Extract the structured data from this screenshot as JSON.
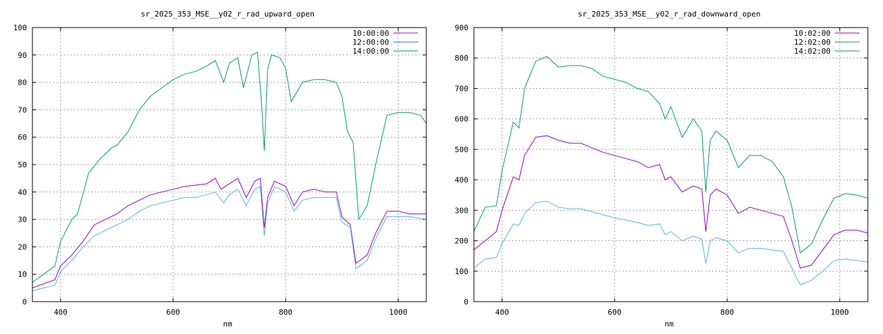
{
  "chart_data": [
    {
      "type": "line",
      "title": "sr_2025_353_MSE__y02_r_rad_upward_open",
      "xlabel": "nm",
      "ylabel": "",
      "xlim": [
        350,
        1050
      ],
      "ylim": [
        0,
        100
      ],
      "x_ticks": [
        400,
        600,
        800,
        1000
      ],
      "y_ticks": [
        0,
        10,
        20,
        30,
        40,
        50,
        60,
        70,
        80,
        90,
        100
      ],
      "grid": true,
      "legend_position": "top-right",
      "series": [
        {
          "name": "10:00:00",
          "color": "#9400d3",
          "points": [
            [
              350,
              5
            ],
            [
              370,
              6.5
            ],
            [
              390,
              8
            ],
            [
              400,
              13
            ],
            [
              420,
              17
            ],
            [
              440,
              22
            ],
            [
              460,
              28
            ],
            [
              480,
              30
            ],
            [
              500,
              32
            ],
            [
              520,
              35
            ],
            [
              540,
              37
            ],
            [
              560,
              39
            ],
            [
              580,
              40
            ],
            [
              600,
              41
            ],
            [
              620,
              42
            ],
            [
              640,
              42.5
            ],
            [
              660,
              43
            ],
            [
              675,
              45
            ],
            [
              685,
              41
            ],
            [
              700,
              43
            ],
            [
              715,
              45
            ],
            [
              730,
              38
            ],
            [
              745,
              44
            ],
            [
              755,
              45
            ],
            [
              762,
              27
            ],
            [
              768,
              38
            ],
            [
              780,
              44
            ],
            [
              800,
              42
            ],
            [
              815,
              35
            ],
            [
              830,
              40
            ],
            [
              850,
              41
            ],
            [
              870,
              40
            ],
            [
              890,
              40
            ],
            [
              900,
              31
            ],
            [
              915,
              28
            ],
            [
              925,
              14
            ],
            [
              945,
              17
            ],
            [
              960,
              25
            ],
            [
              980,
              33
            ],
            [
              1000,
              33
            ],
            [
              1020,
              32
            ],
            [
              1050,
              32
            ]
          ]
        },
        {
          "name": "12:00:00",
          "color": "#009e73",
          "points": [
            [
              350,
              7
            ],
            [
              370,
              10
            ],
            [
              390,
              13
            ],
            [
              400,
              22
            ],
            [
              420,
              30
            ],
            [
              430,
              32
            ],
            [
              450,
              47
            ],
            [
              470,
              52
            ],
            [
              490,
              56
            ],
            [
              500,
              57
            ],
            [
              520,
              62
            ],
            [
              540,
              70
            ],
            [
              560,
              75
            ],
            [
              580,
              78
            ],
            [
              600,
              81
            ],
            [
              620,
              83
            ],
            [
              640,
              84
            ],
            [
              660,
              86
            ],
            [
              675,
              88
            ],
            [
              690,
              80
            ],
            [
              700,
              87
            ],
            [
              715,
              89
            ],
            [
              725,
              78
            ],
            [
              740,
              90
            ],
            [
              750,
              91
            ],
            [
              758,
              70
            ],
            [
              762,
              55
            ],
            [
              768,
              85
            ],
            [
              775,
              90
            ],
            [
              790,
              89
            ],
            [
              800,
              85
            ],
            [
              810,
              73
            ],
            [
              830,
              80
            ],
            [
              850,
              81
            ],
            [
              870,
              81
            ],
            [
              890,
              80
            ],
            [
              900,
              75
            ],
            [
              910,
              62
            ],
            [
              920,
              58
            ],
            [
              930,
              30
            ],
            [
              945,
              35
            ],
            [
              960,
              50
            ],
            [
              980,
              68
            ],
            [
              1000,
              69
            ],
            [
              1020,
              69
            ],
            [
              1040,
              68
            ],
            [
              1050,
              65
            ]
          ]
        },
        {
          "name": "14:00:00",
          "color": "#56b4e9",
          "points": [
            [
              350,
              4
            ],
            [
              370,
              5
            ],
            [
              390,
              6
            ],
            [
              400,
              11
            ],
            [
              420,
              15
            ],
            [
              440,
              20
            ],
            [
              460,
              24
            ],
            [
              480,
              26
            ],
            [
              500,
              28
            ],
            [
              520,
              30
            ],
            [
              540,
              33
            ],
            [
              560,
              35
            ],
            [
              580,
              36
            ],
            [
              600,
              37
            ],
            [
              620,
              38
            ],
            [
              640,
              38
            ],
            [
              660,
              39
            ],
            [
              675,
              40
            ],
            [
              690,
              36
            ],
            [
              700,
              39
            ],
            [
              715,
              41
            ],
            [
              730,
              35
            ],
            [
              745,
              41
            ],
            [
              755,
              42
            ],
            [
              762,
              24
            ],
            [
              768,
              36
            ],
            [
              780,
              42
            ],
            [
              800,
              40
            ],
            [
              815,
              33
            ],
            [
              830,
              37
            ],
            [
              850,
              38
            ],
            [
              870,
              38
            ],
            [
              890,
              38
            ],
            [
              900,
              29
            ],
            [
              915,
              27
            ],
            [
              925,
              12
            ],
            [
              945,
              15
            ],
            [
              960,
              23
            ],
            [
              980,
              31
            ],
            [
              1000,
              31
            ],
            [
              1020,
              31
            ],
            [
              1050,
              30
            ]
          ]
        }
      ]
    },
    {
      "type": "line",
      "title": "sr_2025_353_MSE__y02_r_rad_downward_open",
      "xlabel": "nm",
      "ylabel": "",
      "xlim": [
        350,
        1050
      ],
      "ylim": [
        0,
        900
      ],
      "x_ticks": [
        400,
        600,
        800,
        1000
      ],
      "y_ticks": [
        0,
        100,
        200,
        300,
        400,
        500,
        600,
        700,
        800,
        900
      ],
      "grid": true,
      "legend_position": "top-right",
      "series": [
        {
          "name": "10:02:00",
          "color": "#9400d3",
          "points": [
            [
              350,
              170
            ],
            [
              370,
              200
            ],
            [
              390,
              230
            ],
            [
              400,
              300
            ],
            [
              420,
              410
            ],
            [
              430,
              400
            ],
            [
              440,
              480
            ],
            [
              460,
              540
            ],
            [
              480,
              545
            ],
            [
              500,
              530
            ],
            [
              520,
              520
            ],
            [
              540,
              520
            ],
            [
              560,
              505
            ],
            [
              580,
              490
            ],
            [
              600,
              480
            ],
            [
              620,
              470
            ],
            [
              640,
              460
            ],
            [
              660,
              440
            ],
            [
              680,
              450
            ],
            [
              690,
              400
            ],
            [
              700,
              410
            ],
            [
              720,
              360
            ],
            [
              740,
              380
            ],
            [
              755,
              370
            ],
            [
              762,
              230
            ],
            [
              770,
              350
            ],
            [
              780,
              370
            ],
            [
              800,
              350
            ],
            [
              820,
              290
            ],
            [
              840,
              310
            ],
            [
              860,
              300
            ],
            [
              880,
              290
            ],
            [
              900,
              280
            ],
            [
              915,
              200
            ],
            [
              930,
              110
            ],
            [
              950,
              120
            ],
            [
              970,
              170
            ],
            [
              990,
              220
            ],
            [
              1010,
              235
            ],
            [
              1030,
              235
            ],
            [
              1050,
              225
            ]
          ]
        },
        {
          "name": "12:02:00",
          "color": "#009e73",
          "points": [
            [
              350,
              230
            ],
            [
              370,
              310
            ],
            [
              390,
              315
            ],
            [
              400,
              430
            ],
            [
              420,
              590
            ],
            [
              430,
              570
            ],
            [
              440,
              700
            ],
            [
              460,
              790
            ],
            [
              480,
              805
            ],
            [
              500,
              770
            ],
            [
              520,
              775
            ],
            [
              540,
              775
            ],
            [
              560,
              765
            ],
            [
              580,
              740
            ],
            [
              600,
              730
            ],
            [
              620,
              720
            ],
            [
              640,
              700
            ],
            [
              660,
              690
            ],
            [
              680,
              650
            ],
            [
              690,
              600
            ],
            [
              700,
              640
            ],
            [
              720,
              540
            ],
            [
              740,
              600
            ],
            [
              755,
              560
            ],
            [
              762,
              360
            ],
            [
              770,
              530
            ],
            [
              780,
              560
            ],
            [
              800,
              530
            ],
            [
              820,
              440
            ],
            [
              840,
              480
            ],
            [
              860,
              480
            ],
            [
              880,
              460
            ],
            [
              900,
              410
            ],
            [
              915,
              310
            ],
            [
              930,
              160
            ],
            [
              950,
              190
            ],
            [
              970,
              270
            ],
            [
              990,
              340
            ],
            [
              1010,
              355
            ],
            [
              1030,
              350
            ],
            [
              1050,
              340
            ]
          ]
        },
        {
          "name": "14:02:00",
          "color": "#56b4e9",
          "points": [
            [
              350,
              110
            ],
            [
              370,
              140
            ],
            [
              390,
              145
            ],
            [
              400,
              190
            ],
            [
              420,
              255
            ],
            [
              430,
              250
            ],
            [
              440,
              290
            ],
            [
              460,
              325
            ],
            [
              480,
              330
            ],
            [
              500,
              310
            ],
            [
              520,
              305
            ],
            [
              540,
              305
            ],
            [
              560,
              295
            ],
            [
              580,
              285
            ],
            [
              600,
              275
            ],
            [
              620,
              268
            ],
            [
              640,
              260
            ],
            [
              660,
              250
            ],
            [
              680,
              255
            ],
            [
              690,
              220
            ],
            [
              700,
              230
            ],
            [
              720,
              200
            ],
            [
              740,
              215
            ],
            [
              755,
              205
            ],
            [
              762,
              125
            ],
            [
              770,
              200
            ],
            [
              780,
              210
            ],
            [
              800,
              200
            ],
            [
              820,
              160
            ],
            [
              840,
              175
            ],
            [
              860,
              175
            ],
            [
              880,
              170
            ],
            [
              900,
              165
            ],
            [
              915,
              110
            ],
            [
              930,
              55
            ],
            [
              950,
              70
            ],
            [
              970,
              100
            ],
            [
              990,
              135
            ],
            [
              1010,
              140
            ],
            [
              1030,
              135
            ],
            [
              1050,
              130
            ]
          ]
        }
      ]
    }
  ]
}
